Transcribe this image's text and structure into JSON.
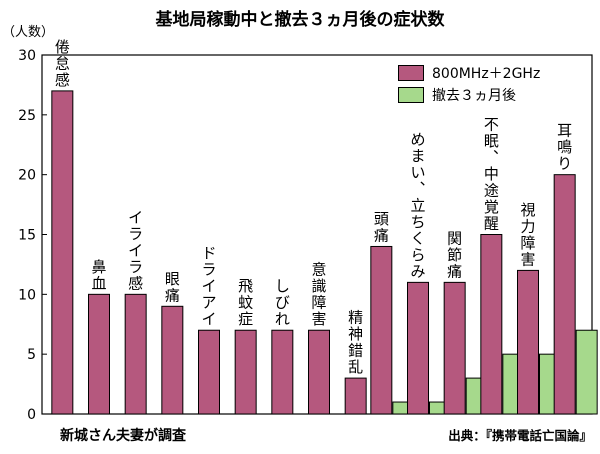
{
  "chart_data": {
    "type": "bar",
    "title": "基地局稼動中と撤去３ヵ月後の症状数",
    "ylabel": "（人数）",
    "ylim": [
      0,
      30
    ],
    "yticks": [
      0,
      5,
      10,
      15,
      20,
      25,
      30
    ],
    "categories": [
      "倦怠感",
      "鼻血",
      "イライラ感",
      "眼痛",
      "ドライアイ",
      "飛蚊症",
      "しびれ",
      "意識障害",
      "精神錯乱",
      "頭痛",
      "めまい、立ちくらみ",
      "関節痛",
      "不眠、中途覚醒",
      "視力障害",
      "耳鳴り"
    ],
    "series": [
      {
        "name": "800MHz＋2GHz",
        "color": "#b5587e",
        "values": [
          27,
          10,
          10,
          9,
          7,
          7,
          7,
          7,
          3,
          14,
          11,
          11,
          15,
          12,
          20
        ]
      },
      {
        "name": "撤去３ヵ月後",
        "color": "#a6d98c",
        "values": [
          null,
          null,
          null,
          null,
          null,
          null,
          null,
          null,
          null,
          1,
          1,
          3,
          5,
          5,
          7
        ]
      }
    ],
    "legend_position": "top-right",
    "grid": false
  },
  "footer": {
    "note": "新城さん夫妻が調査",
    "source": "出典：『携帯電話亡国論』"
  }
}
